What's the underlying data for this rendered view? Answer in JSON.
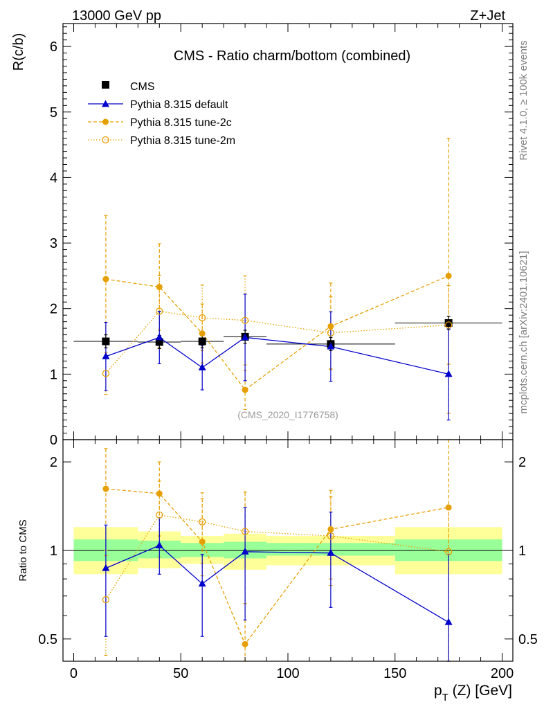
{
  "header": {
    "left": "13000 GeV pp",
    "right": "Z+Jet"
  },
  "side_labels": {
    "rivet": "Rivet 4.1.0, ≥ 100k events",
    "mcplots": "mcplots.cern.ch [arXiv:2401.10621]"
  },
  "colors": {
    "cms": "#000000",
    "default": "#0000cc",
    "tune2c": "#e69f00",
    "tune2m": "#e69f00",
    "band_inner": "#99ff99",
    "band_outer": "#ffff99",
    "watermark": "#999999"
  },
  "chart_data": [
    {
      "type": "scatter",
      "title": "CMS - Ratio charm/bottom (combined)",
      "ylabel": "R(c/b)",
      "xlabel": "",
      "xlim": [
        -5,
        205
      ],
      "ylim": [
        0,
        6.35
      ],
      "yticks": [
        0,
        1,
        2,
        3,
        4,
        5,
        6
      ],
      "yticklabels": [
        "0",
        "1",
        "2",
        "3",
        "4",
        "5",
        "6"
      ],
      "watermark": "(CMS_2020_I1776758)",
      "legend": [
        "CMS",
        "Pythia 8.315 default",
        "Pythia 8.315 tune-2c",
        "Pythia 8.315 tune-2m"
      ],
      "series": [
        {
          "name": "CMS",
          "x": [
            15,
            40,
            60,
            80,
            120,
            175
          ],
          "xerr": [
            15,
            10,
            10,
            10,
            30,
            25
          ],
          "values": [
            1.5,
            1.49,
            1.5,
            1.57,
            1.46,
            1.78
          ],
          "yerr": [
            0.1,
            0.1,
            0.1,
            0.1,
            0.1,
            0.1
          ]
        },
        {
          "name": "Pythia 8.315 default",
          "x": [
            15,
            40,
            60,
            80,
            120,
            175
          ],
          "values": [
            1.27,
            1.56,
            1.1,
            1.56,
            1.42,
            1.0
          ],
          "yerr": [
            0.52,
            0.4,
            0.34,
            0.66,
            0.53,
            0.7
          ]
        },
        {
          "name": "Pythia 8.315 tune-2c",
          "x": [
            15,
            40,
            60,
            80,
            120,
            175
          ],
          "values": [
            2.45,
            2.33,
            1.62,
            0.76,
            1.73,
            2.5
          ],
          "yerr": [
            0.97,
            0.66,
            0.45,
            0.3,
            0.66,
            2.1
          ]
        },
        {
          "name": "Pythia 8.315 tune-2m",
          "x": [
            15,
            40,
            60,
            80,
            120,
            175
          ],
          "values": [
            1.01,
            1.96,
            1.86,
            1.82,
            1.63,
            1.75
          ],
          "yerr": [
            0.32,
            0.55,
            0.5,
            0.68,
            0.55,
            0.6
          ]
        }
      ]
    },
    {
      "type": "scatter",
      "ylabel": "Ratio to CMS",
      "xlabel": "p_T (Z) [GeV]",
      "xlim": [
        -5,
        205
      ],
      "ylim": [
        0.42,
        2.38
      ],
      "yscale": "log",
      "yticks": [
        0.5,
        1,
        2
      ],
      "yticklabels": [
        "0.5",
        "1",
        "2"
      ],
      "xticks": [
        0,
        50,
        100,
        150,
        200
      ],
      "xticklabels": [
        "0",
        "50",
        "100",
        "150",
        "200"
      ],
      "bands": [
        {
          "x0": 0,
          "x1": 30,
          "inner": [
            0.92,
            1.09
          ],
          "outer": [
            0.83,
            1.2
          ]
        },
        {
          "x0": 30,
          "x1": 50,
          "inner": [
            0.94,
            1.08
          ],
          "outer": [
            0.87,
            1.16
          ]
        },
        {
          "x0": 50,
          "x1": 70,
          "inner": [
            0.95,
            1.06
          ],
          "outer": [
            0.9,
            1.12
          ]
        },
        {
          "x0": 70,
          "x1": 90,
          "inner": [
            0.94,
            1.07
          ],
          "outer": [
            0.86,
            1.14
          ]
        },
        {
          "x0": 90,
          "x1": 150,
          "inner": [
            0.96,
            1.06
          ],
          "outer": [
            0.89,
            1.12
          ]
        },
        {
          "x0": 150,
          "x1": 200,
          "inner": [
            0.92,
            1.09
          ],
          "outer": [
            0.83,
            1.2
          ]
        }
      ],
      "series": [
        {
          "name": "Pythia 8.315 default",
          "x": [
            15,
            40,
            60,
            80,
            120,
            175
          ],
          "values": [
            0.87,
            1.04,
            0.77,
            0.99,
            0.98,
            0.57
          ],
          "lo": [
            0.51,
            0.83,
            0.51,
            0.58,
            0.64,
            0.35
          ],
          "hi": [
            1.22,
            1.29,
            0.97,
            1.4,
            1.35,
            0.97
          ]
        },
        {
          "name": "Pythia 8.315 tune-2c",
          "x": [
            15,
            40,
            60,
            80,
            120,
            175
          ],
          "values": [
            1.62,
            1.56,
            1.07,
            0.48,
            1.18,
            1.4
          ],
          "lo": [
            1.0,
            1.12,
            0.82,
            0.31,
            0.8,
            0.4
          ],
          "hi": [
            2.22,
            2.0,
            1.5,
            1.58,
            1.6,
            2.38
          ]
        },
        {
          "name": "Pythia 8.315 tune-2m",
          "x": [
            15,
            40,
            60,
            80,
            120,
            175
          ],
          "values": [
            0.68,
            1.32,
            1.25,
            1.16,
            1.12,
            0.99
          ],
          "lo": [
            0.44,
            0.95,
            0.9,
            0.66,
            0.76,
            0.42
          ],
          "hi": [
            0.96,
            1.72,
            1.57,
            1.58,
            1.52,
            1.38
          ]
        }
      ]
    }
  ]
}
